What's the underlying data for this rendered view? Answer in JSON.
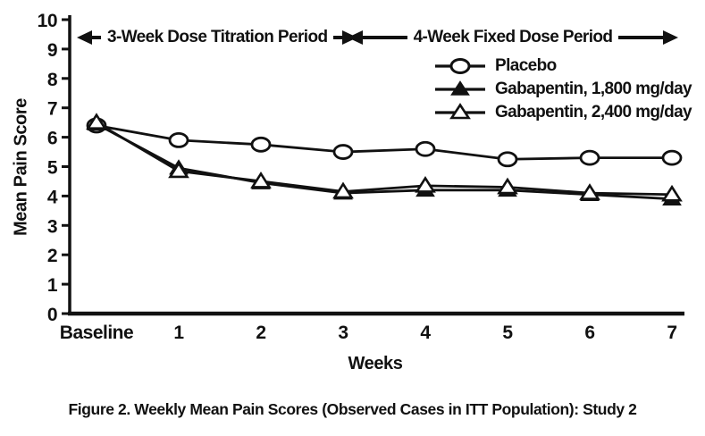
{
  "figure": {
    "caption": "Figure 2. Weekly Mean Pain Scores (Observed Cases in ITT Population): Study 2"
  },
  "chart_data": {
    "type": "line",
    "title": "",
    "xlabel": "Weeks",
    "ylabel": "Mean Pain Score",
    "ylim": [
      0,
      10
    ],
    "yticks": [
      0,
      1,
      2,
      3,
      4,
      5,
      6,
      7,
      8,
      9,
      10
    ],
    "grid": false,
    "legend_position": "top-right",
    "categories": [
      "Baseline",
      "1",
      "2",
      "3",
      "4",
      "5",
      "6",
      "7"
    ],
    "series": [
      {
        "name": "Placebo",
        "marker": "open-circle",
        "values": [
          6.4,
          5.9,
          5.75,
          5.5,
          5.6,
          5.25,
          5.3,
          5.3
        ]
      },
      {
        "name": "Gabapentin, 1,800 mg/day",
        "marker": "filled-triangle",
        "values": [
          6.45,
          4.95,
          4.45,
          4.1,
          4.2,
          4.2,
          4.05,
          3.9
        ]
      },
      {
        "name": "Gabapentin, 2,400 mg/day",
        "marker": "open-triangle",
        "values": [
          6.5,
          4.85,
          4.5,
          4.15,
          4.35,
          4.3,
          4.1,
          4.05
        ]
      }
    ],
    "annotations": [
      {
        "text": "3-Week Dose Titration Period",
        "span": [
          "Baseline",
          "3"
        ]
      },
      {
        "text": "4-Week Fixed Dose Period",
        "span": [
          "3",
          "7"
        ]
      }
    ],
    "colors": {
      "ink": "#111111",
      "background": "#ffffff"
    }
  }
}
